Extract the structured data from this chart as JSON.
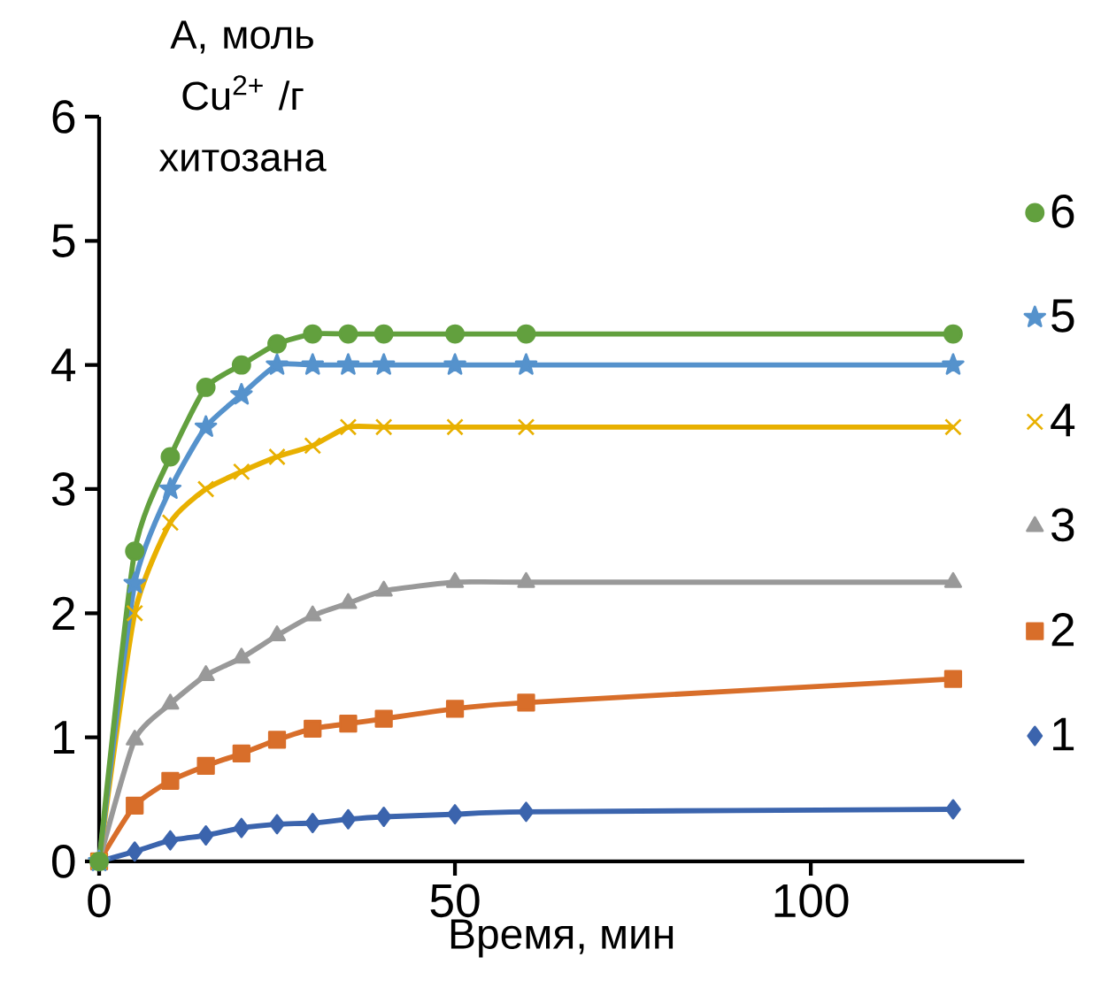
{
  "chart_data": {
    "type": "line",
    "xlabel": "Время, мин",
    "ylabel": "А, моль Cu$^{2+}$ /г хитозана",
    "x": [
      0,
      5,
      10,
      15,
      20,
      25,
      30,
      35,
      40,
      50,
      60,
      120
    ],
    "xlim": [
      0,
      130
    ],
    "xticks": [
      0,
      50,
      100
    ],
    "ylim": [
      0,
      6
    ],
    "yticks": [
      0,
      1,
      2,
      3,
      4,
      5,
      6
    ],
    "legend": "right",
    "series": [
      {
        "name": "1",
        "color": "#3b64ad",
        "marker": "diamond",
        "values": [
          0,
          0.08,
          0.17,
          0.21,
          0.27,
          0.3,
          0.31,
          0.34,
          0.36,
          0.38,
          0.4,
          0.42
        ]
      },
      {
        "name": "2",
        "color": "#d86e2a",
        "marker": "square",
        "values": [
          0,
          0.45,
          0.65,
          0.77,
          0.87,
          0.98,
          1.07,
          1.11,
          1.15,
          1.23,
          1.28,
          1.47
        ]
      },
      {
        "name": "3",
        "color": "#999999",
        "marker": "triangle",
        "values": [
          0,
          0.98,
          1.27,
          1.5,
          1.64,
          1.82,
          1.98,
          2.08,
          2.18,
          2.25,
          2.25,
          2.25
        ]
      },
      {
        "name": "4",
        "color": "#e8b000",
        "marker": "cross",
        "values": [
          0,
          2.0,
          2.73,
          3.0,
          3.14,
          3.26,
          3.35,
          3.5,
          3.5,
          3.5,
          3.5,
          3.5
        ]
      },
      {
        "name": "5",
        "color": "#5592cc",
        "marker": "star",
        "values": [
          0,
          2.24,
          3.0,
          3.5,
          3.76,
          4.0,
          4.0,
          4.0,
          4.0,
          4.0,
          4.0,
          4.0
        ]
      },
      {
        "name": "6",
        "color": "#62a03e",
        "marker": "circle",
        "values": [
          0,
          2.5,
          3.26,
          3.82,
          4.0,
          4.17,
          4.25,
          4.25,
          4.25,
          4.25,
          4.25,
          4.25
        ]
      }
    ]
  }
}
